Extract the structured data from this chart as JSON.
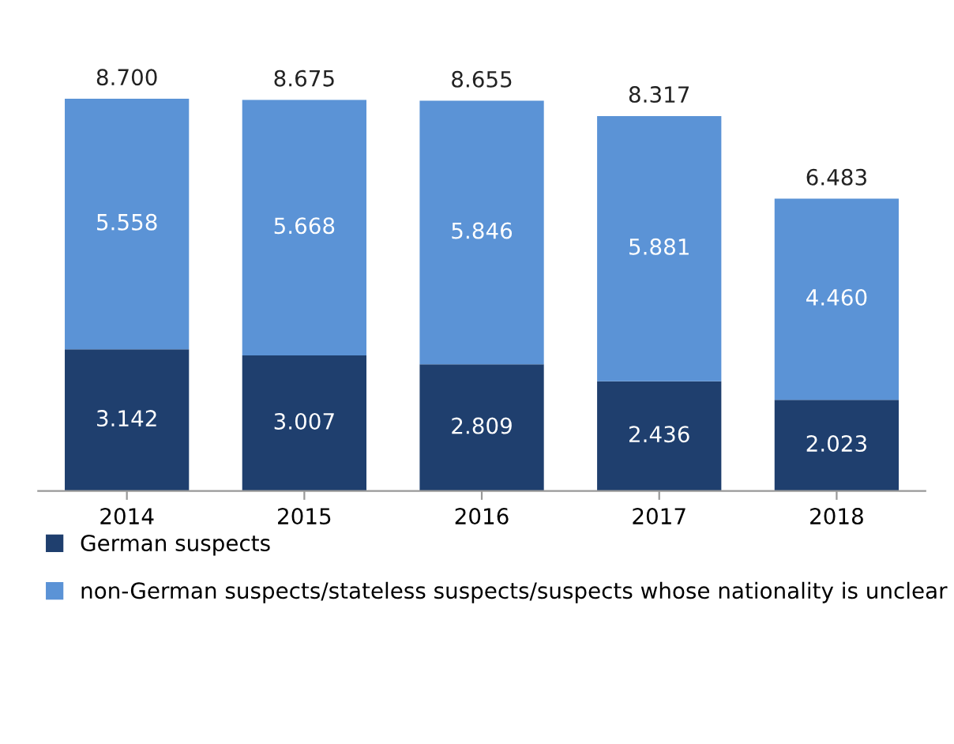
{
  "chart_data": {
    "type": "bar",
    "stacked": true,
    "categories": [
      "2014",
      "2015",
      "2016",
      "2017",
      "2018"
    ],
    "series": [
      {
        "name": "German suspects",
        "color": "#1f3f6e",
        "values": [
          3.142,
          3.007,
          2.809,
          2.436,
          2.023
        ],
        "value_labels": [
          "3.142",
          "3.007",
          "2.809",
          "2.436",
          "2.023"
        ]
      },
      {
        "name": "non-German suspects/stateless suspects/suspects whose nationality is unclear",
        "color": "#5b93d6",
        "values": [
          5.558,
          5.668,
          5.846,
          5.881,
          4.46
        ],
        "value_labels": [
          "5.558",
          "5.668",
          "5.846",
          "5.881",
          "4.460"
        ]
      }
    ],
    "totals": [
      "8.700",
      "8.675",
      "8.655",
      "8.317",
      "6.483"
    ],
    "legend": "bottom"
  }
}
